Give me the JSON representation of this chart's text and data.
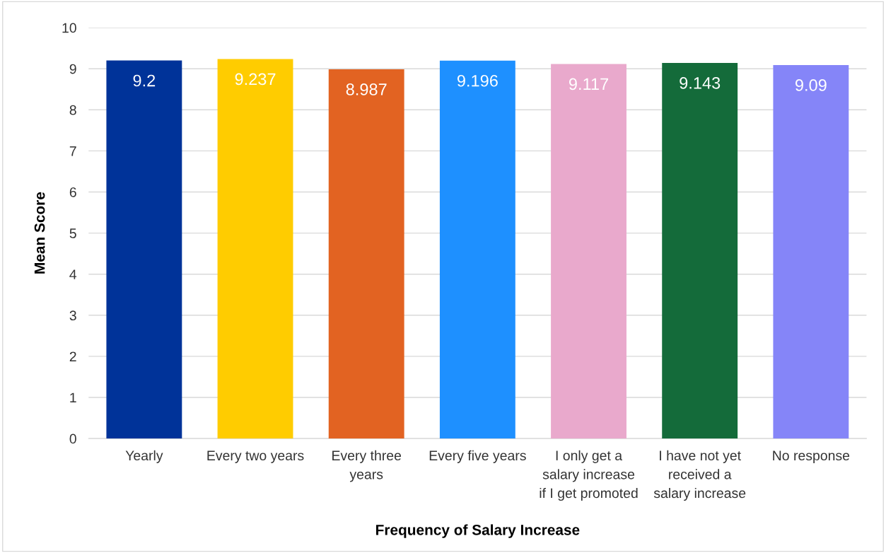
{
  "chart_data": {
    "type": "bar",
    "xlabel": "Frequency of Salary Increase",
    "ylabel": "Mean Score",
    "categories": [
      "Yearly",
      "Every two years",
      "Every three\nyears",
      "Every five years",
      "I only get a\nsalary increase\nif I get promoted",
      "I have not yet\nreceived a\nsalary increase",
      "No response"
    ],
    "values": [
      9.2,
      9.237,
      8.987,
      9.196,
      9.117,
      9.143,
      9.09
    ],
    "colors": [
      "#003399",
      "#ffcc00",
      "#e26322",
      "#1e90ff",
      "#e9a9cc",
      "#146b3a",
      "#8585f8"
    ],
    "ylim": [
      0,
      10
    ],
    "yticks": [
      0,
      1,
      2,
      3,
      4,
      5,
      6,
      7,
      8,
      9,
      10
    ],
    "grid": "y",
    "data_labels": true,
    "legend": false
  }
}
